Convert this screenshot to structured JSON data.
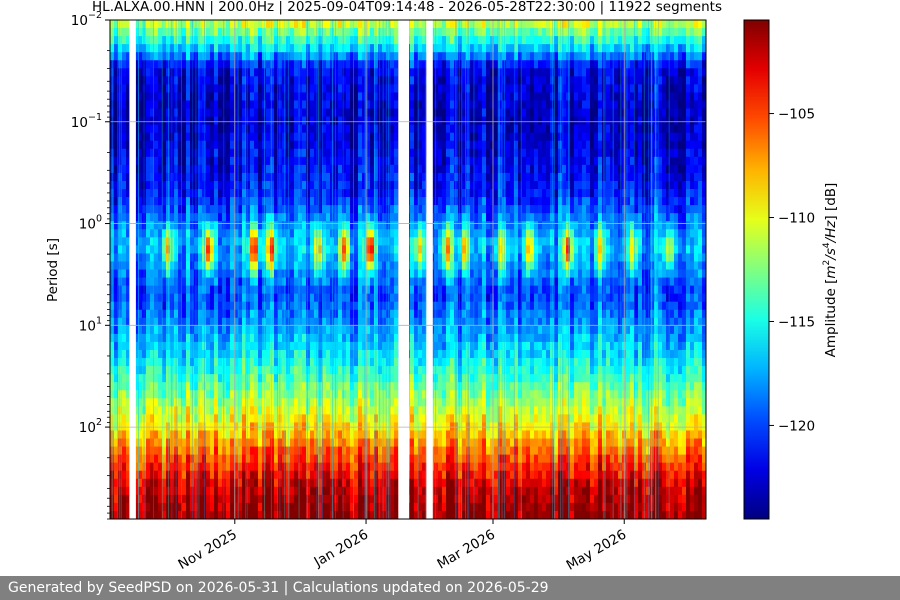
{
  "chart_data": {
    "type": "heatmap",
    "title": "HL.ALXA.00.HNN | 200.0Hz | 2025-09-04T09:14:48 - 2026-05-28T22:30:00 | 11922 segments",
    "ylabel": "Period [s]",
    "xlabel": "",
    "y_scale": "log",
    "y_inverted": true,
    "y_ticks": [
      {
        "base": "10",
        "exp": "−2",
        "value": 0.01
      },
      {
        "base": "10",
        "exp": "−1",
        "value": 0.1
      },
      {
        "base": "10",
        "exp": "0",
        "value": 1
      },
      {
        "base": "10",
        "exp": "1",
        "value": 10
      },
      {
        "base": "10",
        "exp": "2",
        "value": 100
      }
    ],
    "ylim": [
      0.01,
      800
    ],
    "xlim": [
      "2025-09-04",
      "2026-06-08"
    ],
    "x_ticks": [
      {
        "label": "Nov 2025",
        "date": "2025-11-01"
      },
      {
        "label": "Jan 2026",
        "date": "2026-01-01"
      },
      {
        "label": "Mar 2026",
        "date": "2026-03-01"
      },
      {
        "label": "May 2026",
        "date": "2026-05-01"
      }
    ],
    "grid": true,
    "data_gaps": [
      [
        "2025-09-13",
        "2025-09-15"
      ],
      [
        "2026-01-16",
        "2026-01-20"
      ],
      [
        "2026-01-29",
        "2026-01-31"
      ]
    ],
    "colorbar": {
      "colormap": "jet",
      "range": [
        -124.5,
        -100.5
      ],
      "ticks": [
        -105,
        -110,
        -115,
        -120
      ],
      "tick_labels": [
        "−105",
        "−110",
        "−115",
        "−120"
      ],
      "label_prefix": "Amplitude [",
      "label_m": "m",
      "label_sup1": "2",
      "label_s": "/s",
      "label_sup2": "4",
      "label_tail": "/Hz",
      "label_suffix": "] [dB]"
    },
    "amplitude_profile_db": [
      {
        "period": 0.01,
        "db": -110
      },
      {
        "period": 0.02,
        "db": -117
      },
      {
        "period": 0.03,
        "db": -122
      },
      {
        "period": 0.1,
        "db": -123
      },
      {
        "period": 0.5,
        "db": -121
      },
      {
        "period": 1.6,
        "db": -117
      },
      {
        "period": 5,
        "db": -120
      },
      {
        "period": 20,
        "db": -116
      },
      {
        "period": 50,
        "db": -112
      },
      {
        "period": 100,
        "db": -109
      },
      {
        "period": 200,
        "db": -105
      },
      {
        "period": 400,
        "db": -102
      },
      {
        "period": 800,
        "db": -100.5
      }
    ],
    "microseism_bursts": [
      {
        "date": "2025-10-01",
        "db": -107
      },
      {
        "date": "2025-10-20",
        "db": -104
      },
      {
        "date": "2025-11-10",
        "db": -103
      },
      {
        "date": "2025-11-18",
        "db": -104
      },
      {
        "date": "2025-12-10",
        "db": -107
      },
      {
        "date": "2025-12-22",
        "db": -105
      },
      {
        "date": "2026-01-03",
        "db": -102
      },
      {
        "date": "2026-01-26",
        "db": -108
      },
      {
        "date": "2026-02-08",
        "db": -106
      },
      {
        "date": "2026-02-16",
        "db": -107
      },
      {
        "date": "2026-03-05",
        "db": -108
      },
      {
        "date": "2026-03-18",
        "db": -107
      },
      {
        "date": "2026-04-05",
        "db": -104
      },
      {
        "date": "2026-04-20",
        "db": -108
      },
      {
        "date": "2026-05-05",
        "db": -109
      },
      {
        "date": "2026-05-22",
        "db": -110
      }
    ]
  },
  "footer": {
    "text": "Generated by SeedPSD on 2026-05-31 | Calculations updated on 2026-05-29"
  }
}
